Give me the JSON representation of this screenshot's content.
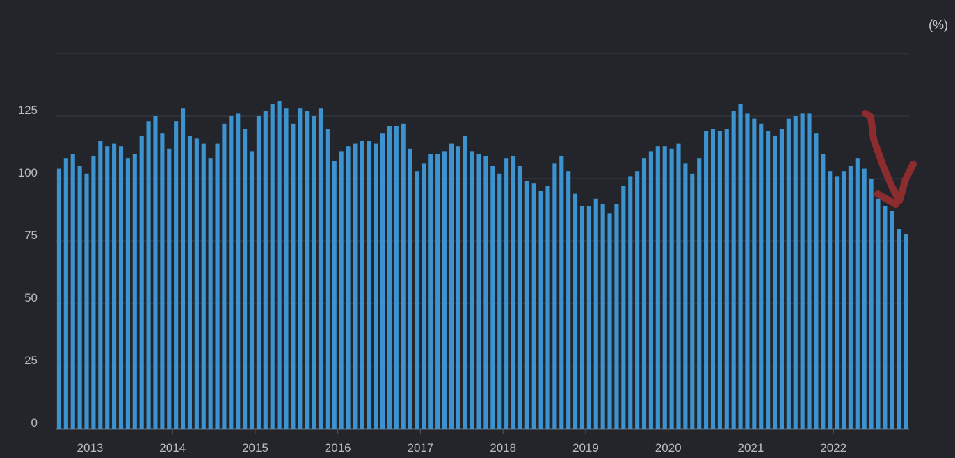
{
  "chart_data": {
    "type": "bar",
    "title": "",
    "xlabel": "",
    "ylabel": "",
    "unit_label": "(%)",
    "y_ticks": [
      0,
      25,
      50,
      75,
      100,
      125
    ],
    "ylim": [
      0,
      150
    ],
    "x_tick_labels": [
      "2013",
      "2014",
      "2015",
      "2016",
      "2017",
      "2018",
      "2019",
      "2020",
      "2021",
      "2022"
    ],
    "x_start": "2012-08",
    "frequency": "monthly",
    "grid": true,
    "legend": "none",
    "colors": {
      "bar": "#3c93d0",
      "background": "#23252b",
      "grid": "#3a3d44"
    },
    "annotation": "hand-drawn red arrow pointing down at latest bars",
    "values": [
      104,
      108,
      110,
      105,
      102,
      109,
      115,
      113,
      114,
      113,
      108,
      110,
      117,
      123,
      125,
      118,
      112,
      123,
      128,
      117,
      116,
      114,
      108,
      114,
      122,
      125,
      126,
      120,
      111,
      125,
      127,
      130,
      131,
      128,
      122,
      128,
      127,
      125,
      128,
      120,
      107,
      111,
      113,
      114,
      115,
      115,
      114,
      118,
      121,
      121,
      122,
      112,
      103,
      106,
      110,
      110,
      111,
      114,
      113,
      117,
      111,
      110,
      109,
      105,
      102,
      108,
      109,
      105,
      99,
      98,
      95,
      97,
      106,
      109,
      103,
      94,
      89,
      89,
      92,
      90,
      86,
      90,
      97,
      101,
      103,
      108,
      111,
      113,
      113,
      112,
      114,
      106,
      102,
      108,
      119,
      120,
      119,
      120,
      127,
      130,
      126,
      124,
      122,
      119,
      117,
      120,
      124,
      125,
      126,
      126,
      118,
      110,
      103,
      101,
      103,
      105,
      108,
      104,
      100,
      92,
      89,
      87,
      80,
      78
    ]
  }
}
